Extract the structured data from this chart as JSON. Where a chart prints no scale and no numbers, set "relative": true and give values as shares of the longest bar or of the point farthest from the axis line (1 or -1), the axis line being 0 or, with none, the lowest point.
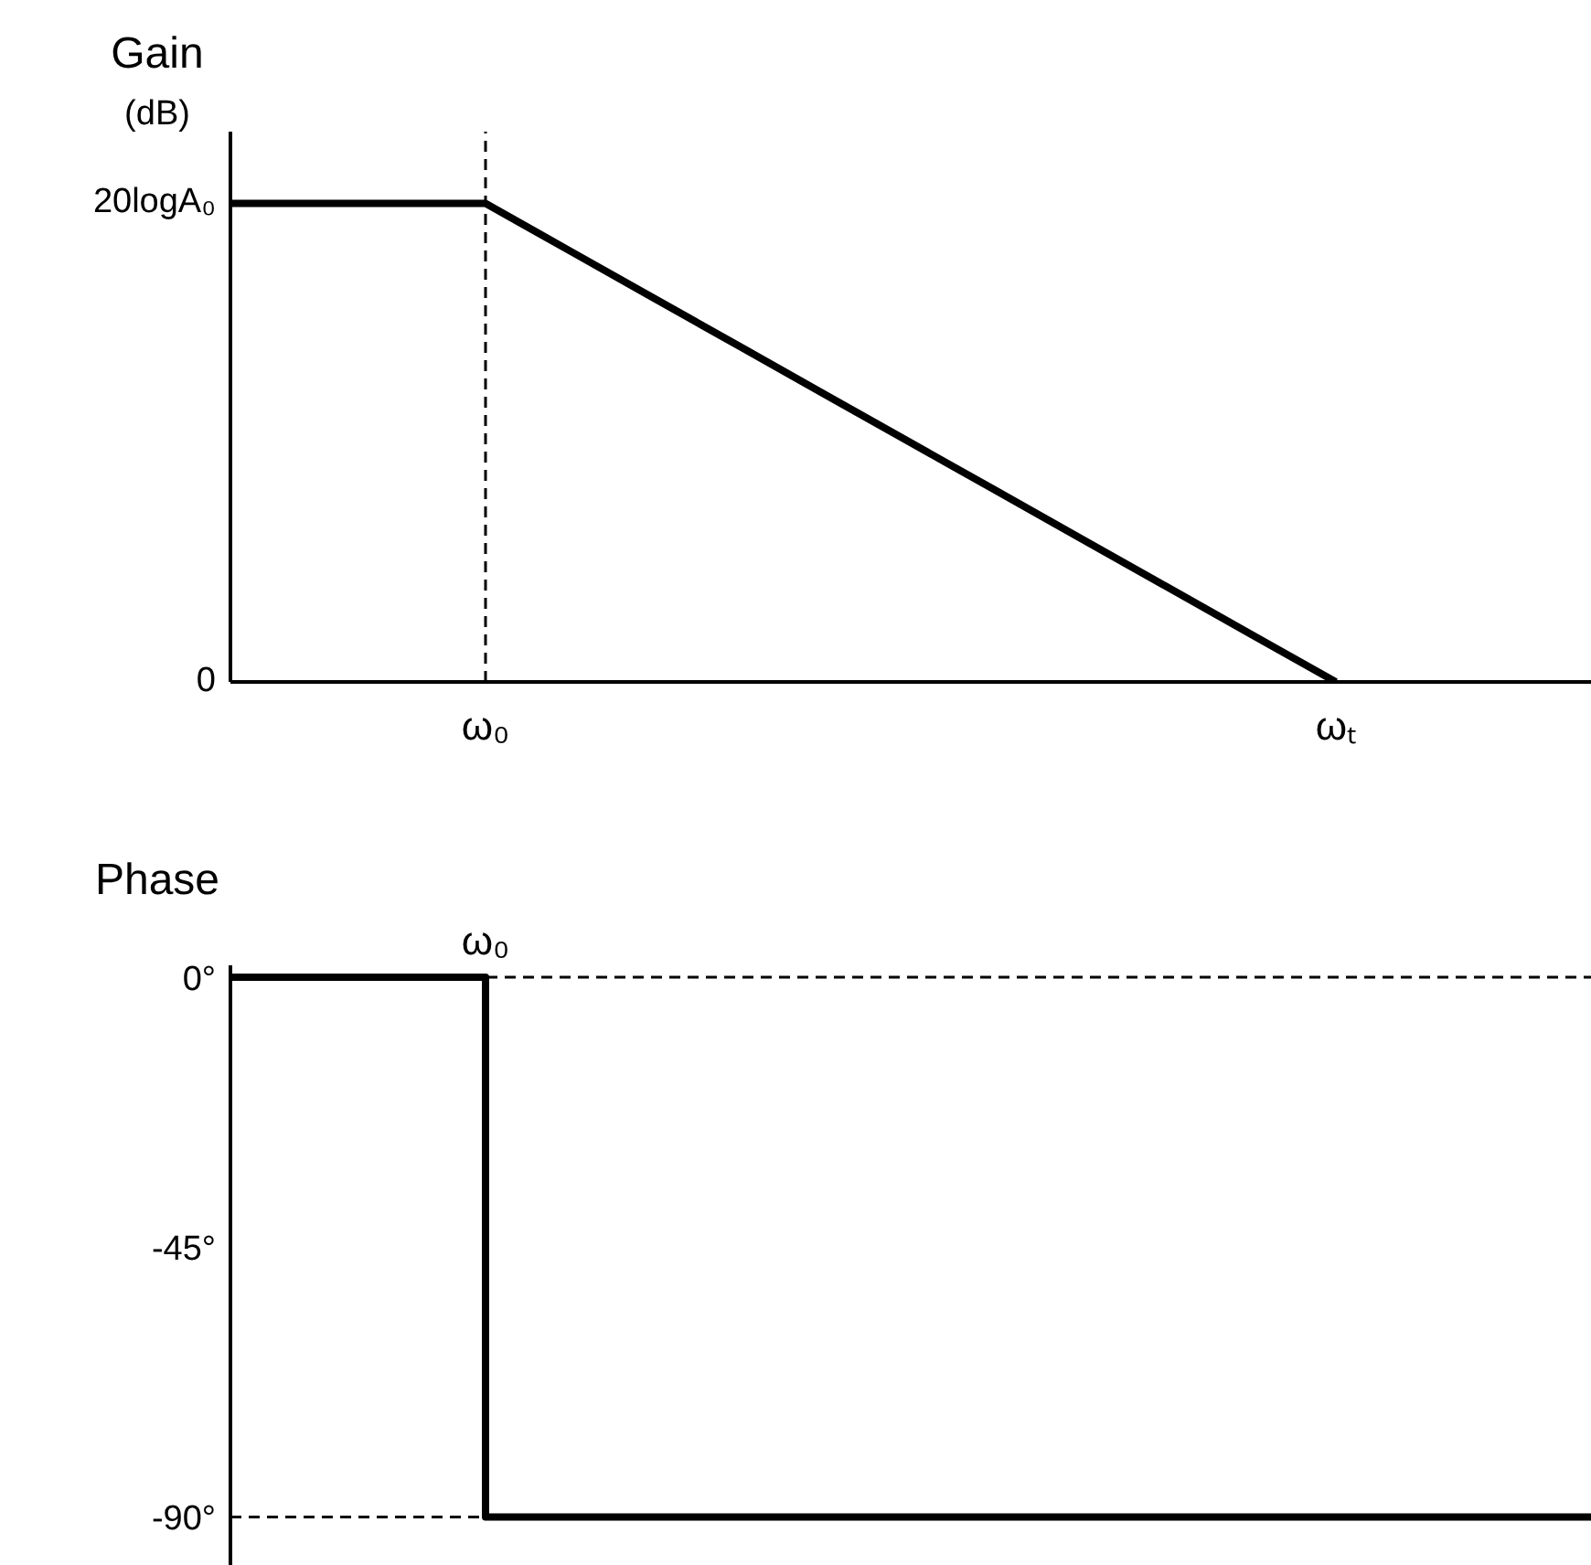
{
  "chart_data": [
    {
      "type": "line",
      "relative": true,
      "ylabel": "Gain (dB)",
      "marker": "none",
      "line_style": "solid",
      "categories": [
        null,
        null,
        null,
        "ω₀",
        null,
        null,
        null,
        null,
        null,
        null,
        null,
        null,
        null,
        "ωₜ",
        null,
        null,
        null
      ],
      "series": [
        {
          "color": "#000000",
          "values": [
            1,
            1,
            1,
            1,
            0.9,
            0.8,
            0.7,
            0.6,
            0.5,
            0.4,
            0.3,
            0.2,
            0.1,
            0,
            null,
            null,
            null
          ]
        }
      ],
      "ref_lines": [
        {
          "axis": "x",
          "value": "ω₀",
          "color": "#000000",
          "line_style": "dashed"
        }
      ],
      "annotations": [
        "20logA₀",
        "0"
      ]
    },
    {
      "type": "step",
      "ylabel": "Phase",
      "ylim": [
        -98,
        2
      ],
      "yticks": [
        {
          "value": 0,
          "label": "0°"
        },
        {
          "value": -45,
          "label": "-45°"
        },
        {
          "value": -90,
          "label": "-90°"
        }
      ],
      "marker": "none",
      "line_style": "solid",
      "categories": [
        null,
        null,
        null,
        "ω₀",
        null,
        null,
        null,
        null,
        null,
        null,
        null,
        null,
        null,
        null,
        null,
        null,
        null
      ],
      "series": [
        {
          "color": "#000000",
          "values": [
            0,
            0,
            0,
            -90,
            -90,
            -90,
            -90,
            -90,
            -90,
            -90,
            -90,
            -90,
            -90,
            -90,
            -90,
            -90,
            -90
          ]
        }
      ],
      "ref_lines": [
        {
          "axis": "y",
          "value": 0,
          "color": "#000000",
          "line_style": "dashed"
        },
        {
          "axis": "y",
          "value": -90,
          "color": "#000000",
          "line_style": "dashed"
        }
      ]
    }
  ]
}
